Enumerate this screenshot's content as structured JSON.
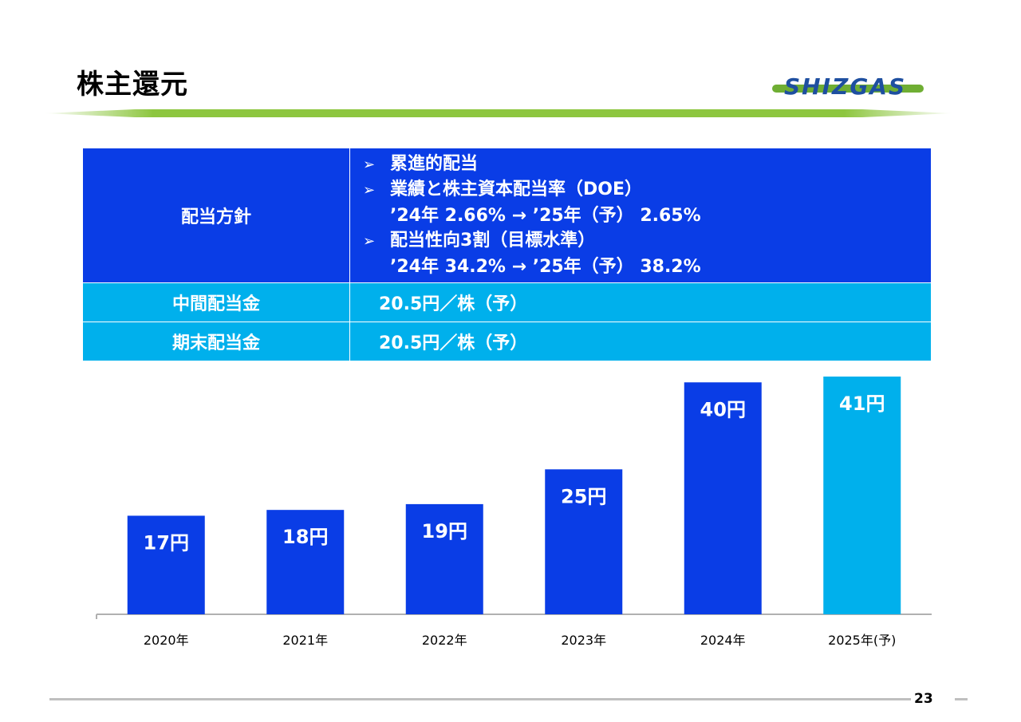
{
  "title": "株主還元",
  "logo_text": "SHIZGAS",
  "page_number": "23",
  "policy": {
    "label": "配当方針",
    "lines": [
      "累進的配当",
      "業績と株主資本配当率（DOE）",
      "’24年 2.66% → ’25年（予） 2.65%",
      "配当性向3割（目標水準）",
      "’24年 34.2% → ’25年（予） 38.2%"
    ],
    "interim_label": "中間配当金",
    "interim_value": "20.5円／株（予）",
    "yearend_label": "期末配当金",
    "yearend_value": "20.5円／株（予）"
  },
  "colors": {
    "actual": "#0a3de6",
    "forecast": "#00b0ec",
    "accent_green": "#8dc63f"
  },
  "chart_data": {
    "type": "bar",
    "categories": [
      "2020年",
      "2021年",
      "2022年",
      "2023年",
      "2024年",
      "2025年(予)"
    ],
    "values": [
      17,
      18,
      19,
      25,
      40,
      41
    ],
    "data_labels": [
      "17円",
      "18円",
      "19円",
      "25円",
      "40円",
      "41円"
    ],
    "forecast": [
      false,
      false,
      false,
      false,
      false,
      true
    ],
    "title": "",
    "xlabel": "",
    "ylabel": "",
    "ylim": [
      0,
      41
    ]
  }
}
